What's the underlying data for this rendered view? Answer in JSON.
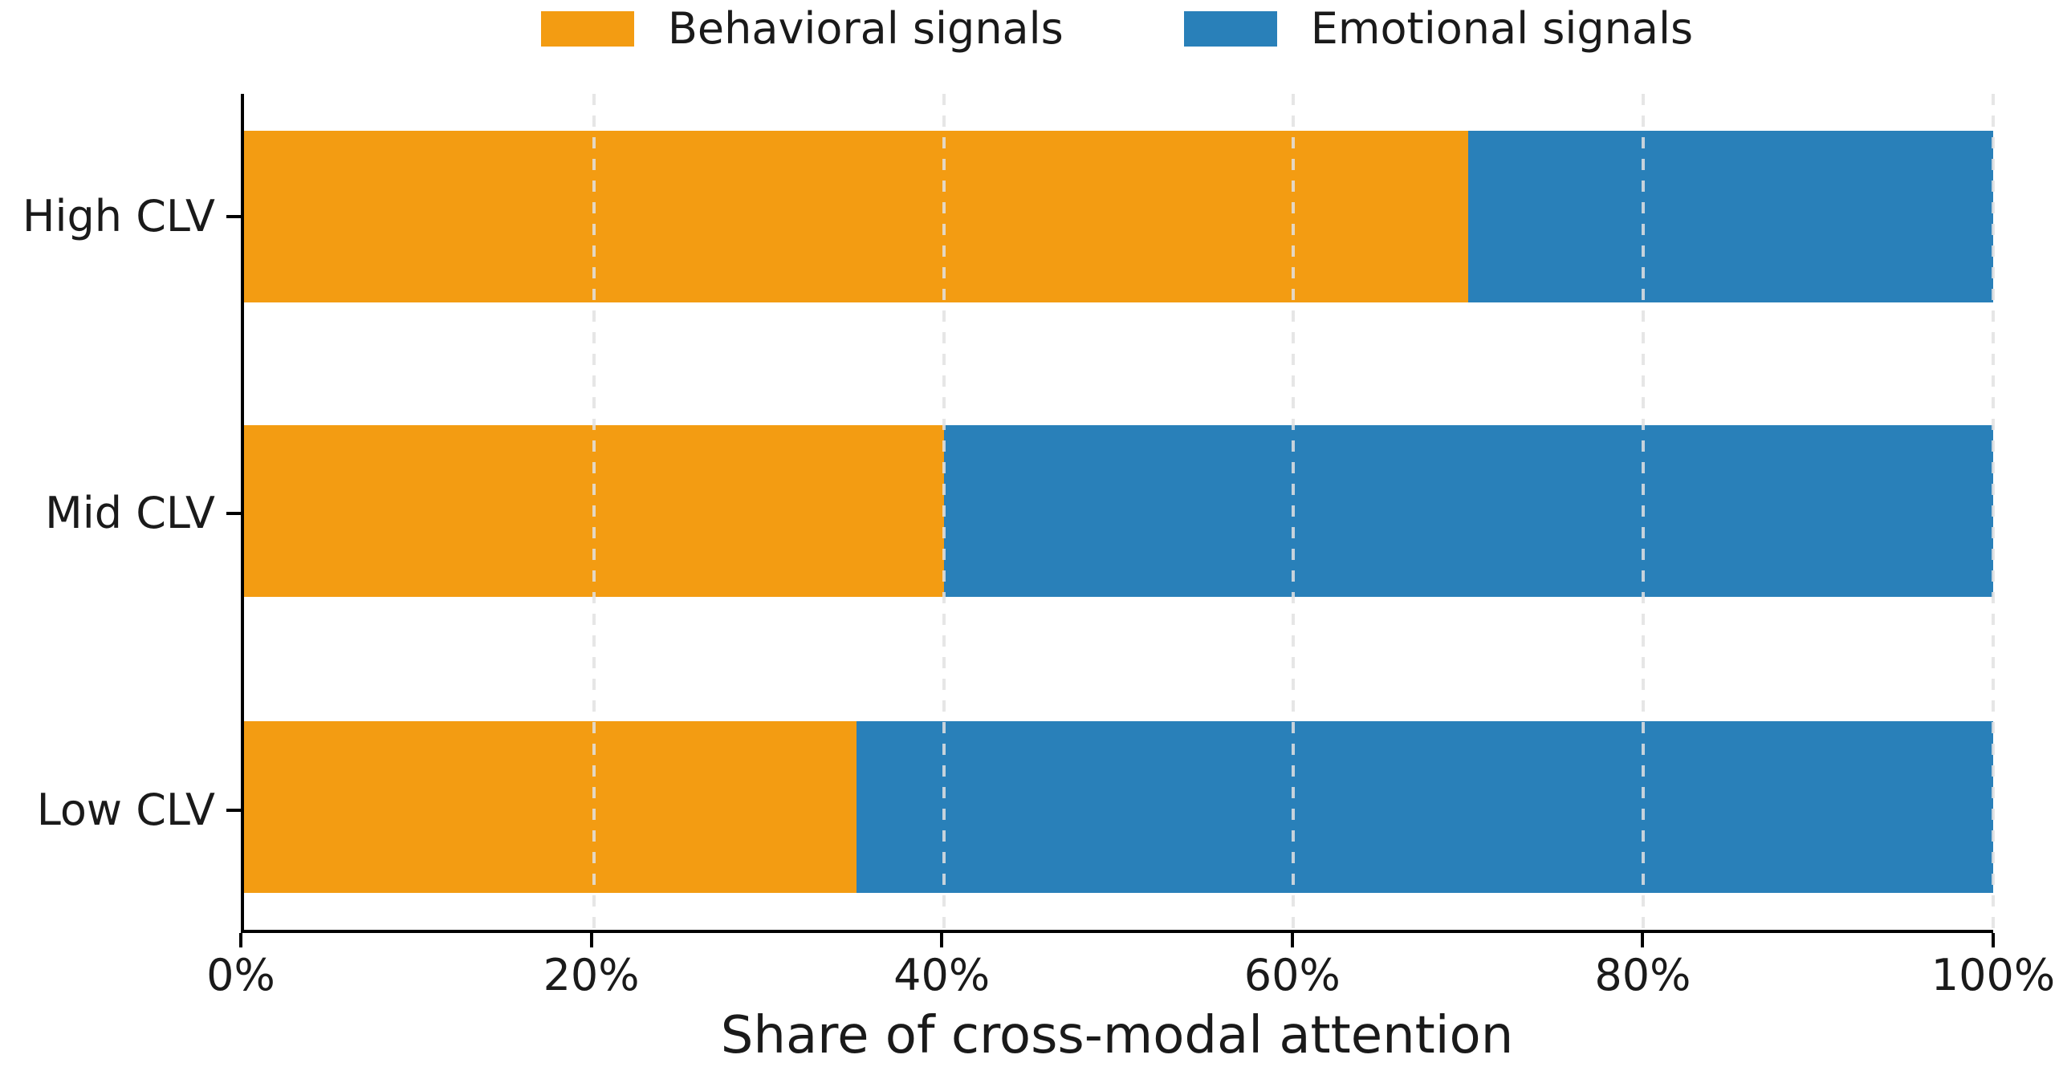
{
  "figure": {
    "background": "#ffffff"
  },
  "legend": {
    "position": "top-center",
    "items": [
      {
        "label": "Behavioral signals",
        "color": "#F39C12",
        "icon": "orange-swatch"
      },
      {
        "label": "Emotional signals",
        "color": "#2980B9",
        "icon": "blue-swatch"
      }
    ]
  },
  "chart_data": {
    "type": "bar",
    "orientation": "horizontal",
    "stacked": true,
    "title": "",
    "xlabel": "Share of cross-modal attention",
    "ylabel": "",
    "categories": [
      "High CLV",
      "Mid CLV",
      "Low CLV"
    ],
    "series": [
      {
        "name": "Behavioral signals",
        "color": "#F39C12",
        "values": [
          70,
          40,
          35
        ]
      },
      {
        "name": "Emotional signals",
        "color": "#2980B9",
        "values": [
          30,
          60,
          65
        ]
      }
    ],
    "value_unit": "%",
    "xlim": [
      0,
      100
    ],
    "x_ticks": [
      0,
      20,
      40,
      60,
      80,
      100
    ],
    "x_tick_labels": [
      "0%",
      "20%",
      "40%",
      "60%",
      "80%",
      "100%"
    ],
    "grid": {
      "axis": "x",
      "style": "dashed",
      "color": "#e1e1e1"
    },
    "legend_position": "top-center"
  },
  "colors": {
    "behavioral": "#F39C12",
    "emotional": "#2980B9",
    "text": "#1a1a1a",
    "spine": "#000000",
    "gridline": "#e1e1e1",
    "background": "#ffffff"
  }
}
